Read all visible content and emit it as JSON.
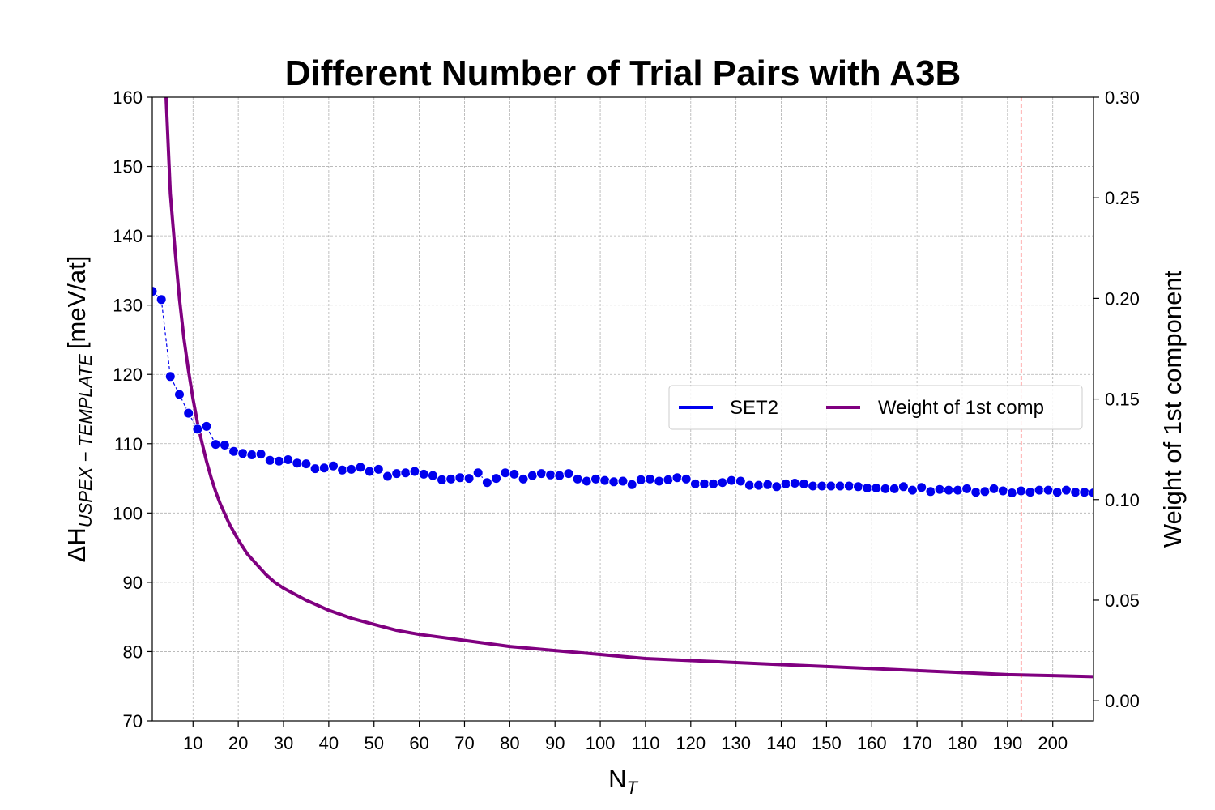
{
  "chart_data": {
    "type": "line",
    "title": "Different Number of Trial Pairs with A3B",
    "xlabel_main": "N",
    "xlabel_sub": "T",
    "ylabel_main": "ΔH",
    "ylabel_sub": "USPEX − TEMPLATE",
    "ylabel_unit": "[meV/at]",
    "y2label": "Weight of 1st component",
    "xlim": [
      1,
      209
    ],
    "ylim": [
      70,
      160
    ],
    "y2lim": [
      -0.01,
      0.3
    ],
    "x_ticks": [
      10,
      20,
      30,
      40,
      50,
      60,
      70,
      80,
      90,
      100,
      110,
      120,
      130,
      140,
      150,
      160,
      170,
      180,
      190,
      200
    ],
    "y_ticks": [
      70,
      80,
      90,
      100,
      110,
      120,
      130,
      140,
      150,
      160
    ],
    "y2_ticks": [
      "0.00",
      "0.05",
      "0.10",
      "0.15",
      "0.20",
      "0.25",
      "0.30"
    ],
    "grid": true,
    "legend_position": "center-right",
    "vertical_marker_x": 193,
    "colors": {
      "set2": "#0000ee",
      "weight": "#800080",
      "marker_line": "#ff0000"
    },
    "series": [
      {
        "name": "SET2",
        "axis": "left",
        "style": "markers-dashed",
        "x": [
          1,
          3,
          5,
          7,
          9,
          11,
          13,
          15,
          17,
          19,
          21,
          23,
          25,
          27,
          29,
          31,
          33,
          35,
          37,
          39,
          41,
          43,
          45,
          47,
          49,
          51,
          53,
          55,
          57,
          59,
          61,
          63,
          65,
          67,
          69,
          71,
          73,
          75,
          77,
          79,
          81,
          83,
          85,
          87,
          89,
          91,
          93,
          95,
          97,
          99,
          101,
          103,
          105,
          107,
          109,
          111,
          113,
          115,
          117,
          119,
          121,
          123,
          125,
          127,
          129,
          131,
          133,
          135,
          137,
          139,
          141,
          143,
          145,
          147,
          149,
          151,
          153,
          155,
          157,
          159,
          161,
          163,
          165,
          167,
          169,
          171,
          173,
          175,
          177,
          179,
          181,
          183,
          185,
          187,
          189,
          191,
          193,
          195,
          197,
          199,
          201,
          203,
          205,
          207,
          209
        ],
        "y": [
          132.0,
          130.8,
          119.7,
          117.1,
          114.4,
          112.1,
          112.5,
          109.9,
          109.8,
          108.9,
          108.6,
          108.4,
          108.5,
          107.6,
          107.5,
          107.7,
          107.2,
          107.1,
          106.4,
          106.5,
          106.8,
          106.2,
          106.3,
          106.6,
          106.0,
          106.3,
          105.3,
          105.7,
          105.8,
          106.0,
          105.6,
          105.4,
          104.8,
          104.9,
          105.1,
          105.0,
          105.8,
          104.4,
          105.0,
          105.8,
          105.6,
          104.9,
          105.4,
          105.7,
          105.5,
          105.4,
          105.7,
          104.9,
          104.6,
          104.9,
          104.7,
          104.5,
          104.6,
          104.1,
          104.8,
          104.9,
          104.6,
          104.8,
          105.1,
          104.9,
          104.2,
          104.2,
          104.2,
          104.4,
          104.7,
          104.6,
          104.0,
          104.0,
          104.1,
          103.8,
          104.2,
          104.3,
          104.2,
          103.9,
          103.9,
          103.9,
          103.9,
          103.9,
          103.8,
          103.6,
          103.6,
          103.5,
          103.5,
          103.8,
          103.3,
          103.7,
          103.1,
          103.4,
          103.3,
          103.3,
          103.5,
          103.0,
          103.1,
          103.5,
          103.2,
          102.9,
          103.2,
          103.0,
          103.3,
          103.3,
          103.0,
          103.3,
          103.0,
          103.0,
          102.9
        ]
      },
      {
        "name": "Weight of 1st comp",
        "axis": "right",
        "style": "line",
        "x": [
          4,
          5,
          6,
          7,
          8,
          9,
          10,
          11,
          12,
          13,
          14,
          15,
          16,
          17,
          18,
          20,
          22,
          24,
          26,
          28,
          30,
          35,
          40,
          45,
          50,
          55,
          60,
          70,
          80,
          90,
          100,
          110,
          120,
          130,
          140,
          150,
          160,
          170,
          180,
          190,
          200,
          209
        ],
        "y": [
          0.302,
          0.252,
          0.225,
          0.2,
          0.18,
          0.164,
          0.15,
          0.138,
          0.128,
          0.119,
          0.111,
          0.104,
          0.098,
          0.093,
          0.088,
          0.08,
          0.073,
          0.068,
          0.063,
          0.059,
          0.056,
          0.05,
          0.045,
          0.041,
          0.038,
          0.035,
          0.033,
          0.03,
          0.027,
          0.025,
          0.023,
          0.021,
          0.02,
          0.019,
          0.018,
          0.017,
          0.016,
          0.015,
          0.014,
          0.013,
          0.0125,
          0.012
        ]
      }
    ]
  }
}
